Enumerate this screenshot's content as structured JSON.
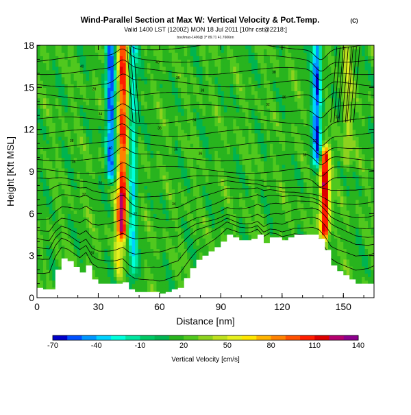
{
  "header": {
    "title": "Wind-Parallel Section at Max W: Vertical Velocity & Pot.Temp.",
    "title_mark": "(C)",
    "valid_line": "Valid 1400 LST (1200Z) MON 18 Jul 2011 [10hr cst@2218:]",
    "sub_line": "box/lmax-1400@ 3° 89.71 41.7606nn"
  },
  "chart_data": {
    "type": "heatmap",
    "title": "Wind-Parallel Section at Max W: Vertical Velocity & Pot.Temp.",
    "xlabel": "Distance [nm]",
    "ylabel": "Height [Kft MSL]",
    "xlim": [
      0,
      165
    ],
    "ylim": [
      0,
      18
    ],
    "x_ticks": [
      "0",
      "30",
      "60",
      "90",
      "120",
      "150"
    ],
    "y_ticks": [
      "0",
      "3",
      "6",
      "9",
      "12",
      "15",
      "18"
    ],
    "colorbar": {
      "label": "Vertical Velocity [cm/s]",
      "tick_labels": [
        "-70",
        "-40",
        "-10",
        "20",
        "50",
        "80",
        "110",
        "140"
      ],
      "colors": [
        "#0000c8",
        "#0050ff",
        "#0096ff",
        "#00d2ff",
        "#00ffdc",
        "#00e6a0",
        "#00c864",
        "#00b450",
        "#28b41e",
        "#50c81e",
        "#8cd21e",
        "#bee11e",
        "#e6f01e",
        "#ffe600",
        "#ffb400",
        "#ff8200",
        "#ff5000",
        "#ff1e00",
        "#dc0000",
        "#b4006e",
        "#8c008c"
      ]
    },
    "background_w_cms": 15,
    "updrafts": [
      {
        "x": 42,
        "w": 120,
        "z_range": [
          5,
          18
        ]
      },
      {
        "x": 141,
        "w": 140,
        "z_range": [
          5,
          10
        ]
      },
      {
        "x": 36,
        "w": -70,
        "z_range": [
          9,
          18
        ]
      },
      {
        "x": 137,
        "w": -70,
        "z_range": [
          10,
          18
        ]
      },
      {
        "x": 47,
        "w": -35,
        "z_range": [
          2,
          18
        ]
      },
      {
        "x": 152,
        "w": 45,
        "z_range": [
          10,
          18
        ]
      },
      {
        "x": 40,
        "w": 55,
        "z_range": [
          2,
          7
        ]
      }
    ],
    "terrain_height_kft": [
      [
        0,
        0.7
      ],
      [
        3,
        0.6
      ],
      [
        6,
        0.6
      ],
      [
        9,
        2.0
      ],
      [
        12,
        2.8
      ],
      [
        15,
        2.6
      ],
      [
        18,
        2.2
      ],
      [
        21,
        1.8
      ],
      [
        24,
        2.3
      ],
      [
        27,
        1.3
      ],
      [
        30,
        1.0
      ],
      [
        33,
        1.0
      ],
      [
        36,
        1.0
      ],
      [
        39,
        1.0
      ],
      [
        42,
        1.1
      ],
      [
        45,
        0.6
      ],
      [
        48,
        0.4
      ],
      [
        51,
        0.4
      ],
      [
        54,
        0.4
      ],
      [
        57,
        0.4
      ],
      [
        60,
        0.3
      ],
      [
        63,
        0.4
      ],
      [
        66,
        0.6
      ],
      [
        69,
        0.7
      ],
      [
        72,
        1.4
      ],
      [
        75,
        2.1
      ],
      [
        78,
        2.7
      ],
      [
        81,
        3.0
      ],
      [
        84,
        3.3
      ],
      [
        87,
        3.6
      ],
      [
        90,
        4.0
      ],
      [
        93,
        4.5
      ],
      [
        96,
        4.3
      ],
      [
        99,
        4.1
      ],
      [
        102,
        4.1
      ],
      [
        105,
        4.2
      ],
      [
        108,
        4.5
      ],
      [
        111,
        3.9
      ],
      [
        114,
        4.3
      ],
      [
        117,
        4.3
      ],
      [
        120,
        4.1
      ],
      [
        123,
        4.3
      ],
      [
        126,
        4.5
      ],
      [
        129,
        4.5
      ],
      [
        132,
        4.5
      ],
      [
        135,
        4.5
      ],
      [
        138,
        4.2
      ],
      [
        141,
        3.4
      ],
      [
        144,
        2.3
      ],
      [
        147,
        1.9
      ],
      [
        150,
        1.6
      ],
      [
        153,
        1.3
      ],
      [
        156,
        1.0
      ],
      [
        159,
        1.0
      ],
      [
        162,
        1.0
      ],
      [
        165,
        1.2
      ]
    ],
    "theta_contour_labels": [
      {
        "x": 27,
        "y": 3.1,
        "label": "30"
      },
      {
        "x": 23,
        "y": 7.3,
        "label": "32"
      },
      {
        "x": 31,
        "y": 8.1,
        "label": "30"
      },
      {
        "x": 67,
        "y": 6.6,
        "label": "34"
      },
      {
        "x": 18,
        "y": 9.6,
        "label": "36"
      },
      {
        "x": 48,
        "y": 5.9,
        "label": "32"
      },
      {
        "x": 80,
        "y": 10.2,
        "label": "36"
      },
      {
        "x": 68,
        "y": 10.5,
        "label": "36"
      },
      {
        "x": 17,
        "y": 11.1,
        "label": "38"
      },
      {
        "x": 31,
        "y": 13.0,
        "label": "34"
      },
      {
        "x": 60,
        "y": 12.0,
        "label": "38"
      },
      {
        "x": 77,
        "y": 12.6,
        "label": "34"
      },
      {
        "x": 113,
        "y": 13.7,
        "label": "32"
      },
      {
        "x": 136,
        "y": 11.1,
        "label": "32"
      },
      {
        "x": 147,
        "y": 12.8,
        "label": "34"
      },
      {
        "x": 28,
        "y": 14.8,
        "label": "28"
      },
      {
        "x": 59,
        "y": 16.7,
        "label": "40"
      },
      {
        "x": 69,
        "y": 15.6,
        "label": "36"
      },
      {
        "x": 81,
        "y": 14.7,
        "label": "38"
      },
      {
        "x": 116,
        "y": 16.0,
        "label": "38"
      },
      {
        "x": 121,
        "y": 14.2,
        "label": "36"
      },
      {
        "x": 22,
        "y": 16.4,
        "label": "40"
      },
      {
        "x": 131,
        "y": 10.1,
        "label": "36"
      },
      {
        "x": 36,
        "y": 10.6,
        "label": "40"
      }
    ]
  }
}
